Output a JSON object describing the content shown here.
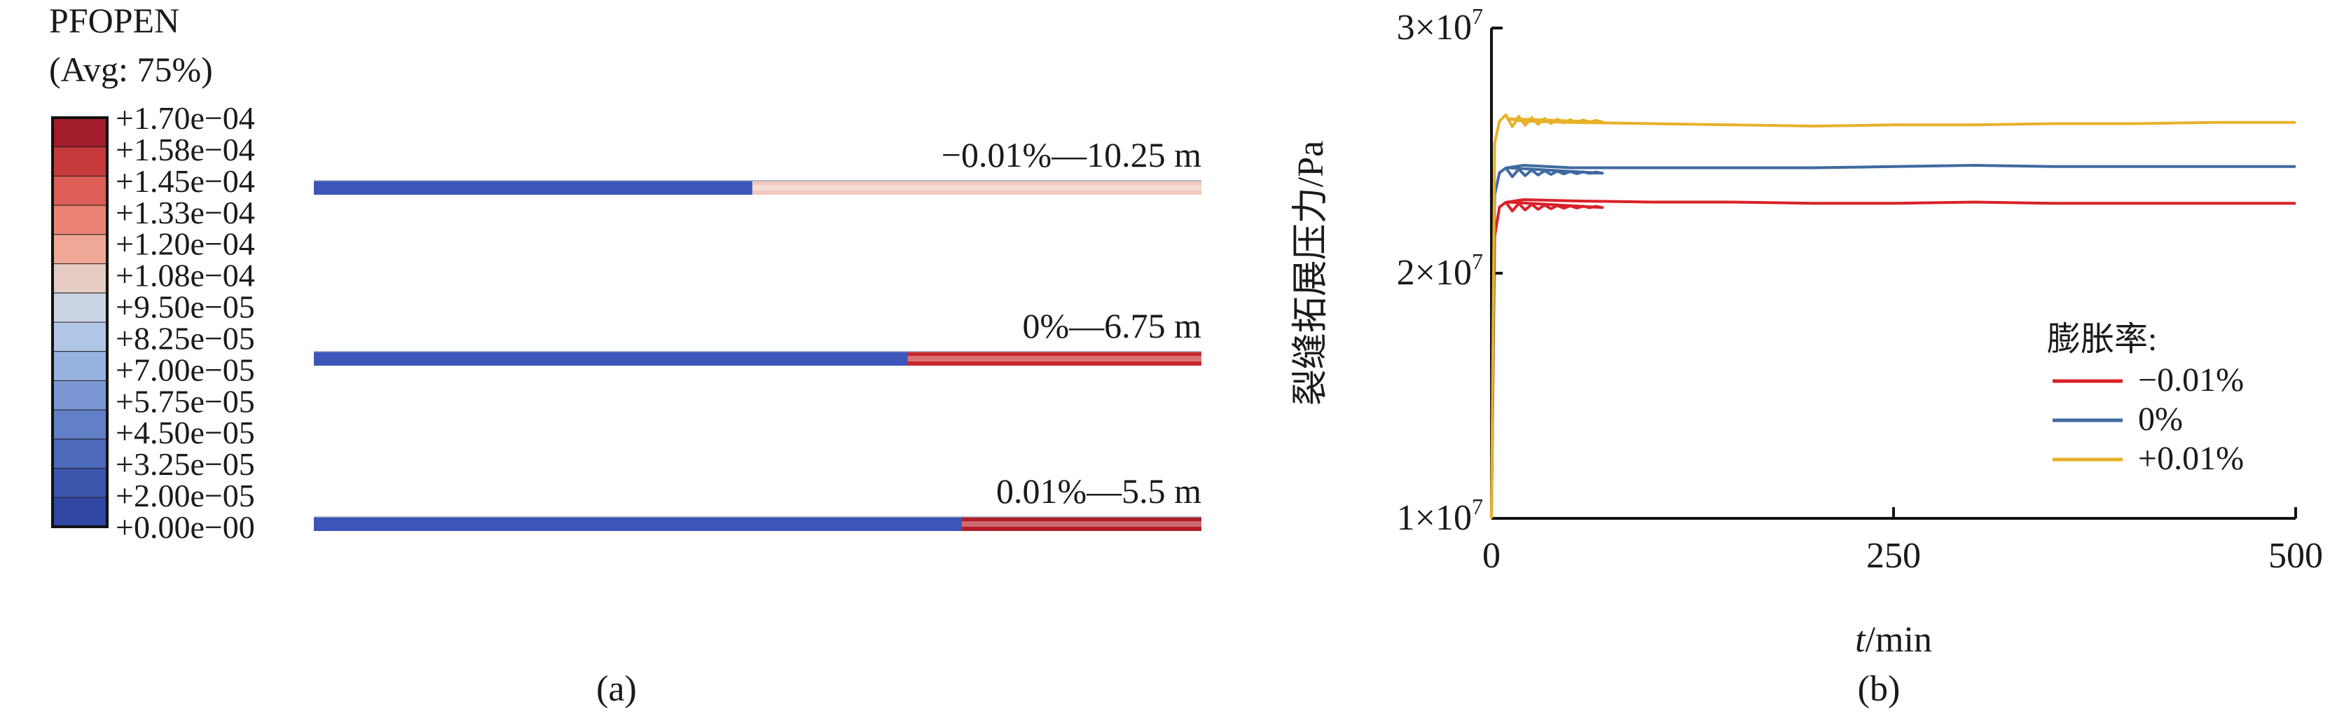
{
  "panel_a": {
    "legend_title": "PFOPEN",
    "legend_subtitle": "(Avg: 75%)",
    "legend_colors": [
      "#a31c2b",
      "#c73a3c",
      "#dd5f57",
      "#ea8374",
      "#f0a896",
      "#e6cbc2",
      "#c9d3e4",
      "#b1c6e7",
      "#97b2df",
      "#7b97d4",
      "#6280c8",
      "#4c69bb",
      "#3b55ad",
      "#2f47a3"
    ],
    "legend_labels": [
      "+1.70e−04",
      "+1.58e−04",
      "+1.45e−04",
      "+1.33e−04",
      "+1.20e−04",
      "+1.08e−04",
      "+9.50e−05",
      "+8.25e−05",
      "+7.00e−05",
      "+5.75e−05",
      "+4.50e−05",
      "+3.25e−05",
      "+2.00e−05",
      "+0.00e−00"
    ],
    "strips": [
      {
        "label": "−0.01%—10.25 m",
        "open_fraction": 0.506,
        "open_color": "#f2c9bc"
      },
      {
        "label": "0%—6.75 m",
        "open_fraction": 0.331,
        "open_color": "#c8282d"
      },
      {
        "label": "0.01%—5.5 m",
        "open_fraction": 0.27,
        "open_color": "#b31c26"
      }
    ],
    "strip_base_color": "#3b56b8",
    "caption": "(a)"
  },
  "panel_b": {
    "caption": "(b)"
  },
  "chart_data": {
    "type": "line",
    "title": "",
    "xlabel_italic": "t",
    "xlabel_rest": "/min",
    "ylabel": "裂缝拓展压力/Pa",
    "xlim": [
      0,
      500
    ],
    "ylim": [
      10000000,
      30000000
    ],
    "x_ticks": [
      "0",
      "250",
      "500"
    ],
    "x_tick_values": [
      0,
      250,
      500
    ],
    "y_tick_values": [
      10000000,
      20000000,
      30000000
    ],
    "y_ticks_base": [
      "1×10",
      "2×10",
      "3×10"
    ],
    "y_ticks_exp": [
      "7",
      "7",
      "7"
    ],
    "legend_title": "膨胀率:",
    "legend_position": "right-middle",
    "grid": false,
    "series": [
      {
        "name": "−0.01%",
        "color": "#d92128",
        "x": [
          0,
          2,
          5,
          10,
          20,
          50,
          100,
          150,
          200,
          250,
          300,
          350,
          400,
          450,
          500
        ],
        "y": [
          10000000,
          21500000,
          22700000,
          22900000,
          23000000,
          22950000,
          22900000,
          22900000,
          22850000,
          22850000,
          22900000,
          22850000,
          22850000,
          22850000,
          22850000
        ]
      },
      {
        "name": "0%",
        "color": "#3f6aa1",
        "x": [
          0,
          2,
          5,
          10,
          20,
          50,
          100,
          150,
          200,
          250,
          300,
          350,
          400,
          450,
          500
        ],
        "y": [
          10000000,
          23200000,
          24100000,
          24300000,
          24400000,
          24300000,
          24300000,
          24300000,
          24300000,
          24350000,
          24400000,
          24350000,
          24350000,
          24350000,
          24350000
        ]
      },
      {
        "name": "+0.01%",
        "color": "#e8b12a",
        "x": [
          0,
          2,
          5,
          10,
          20,
          50,
          100,
          150,
          200,
          250,
          300,
          350,
          400,
          450,
          500
        ],
        "y": [
          10000000,
          25300000,
          26200000,
          26300000,
          26200000,
          26150000,
          26100000,
          26050000,
          26000000,
          26050000,
          26050000,
          26100000,
          26100000,
          26150000,
          26150000
        ]
      }
    ]
  }
}
